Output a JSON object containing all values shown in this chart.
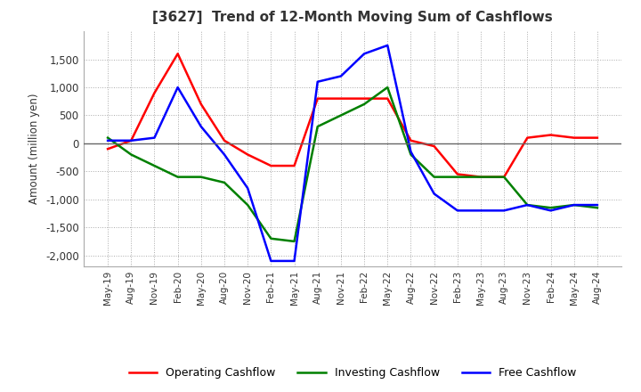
{
  "title": "[3627]  Trend of 12-Month Moving Sum of Cashflows",
  "ylabel": "Amount (million yen)",
  "ylim": [
    -2200,
    2000
  ],
  "yticks": [
    -2000,
    -1500,
    -1000,
    -500,
    0,
    500,
    1000,
    1500
  ],
  "x_labels": [
    "May-19",
    "Aug-19",
    "Nov-19",
    "Feb-20",
    "May-20",
    "Aug-20",
    "Nov-20",
    "Feb-21",
    "May-21",
    "Aug-21",
    "Nov-21",
    "Feb-22",
    "May-22",
    "Aug-22",
    "Nov-22",
    "Feb-23",
    "May-23",
    "Aug-23",
    "Nov-23",
    "Feb-24",
    "May-24",
    "Aug-24"
  ],
  "operating_cashflow": [
    -100,
    50,
    900,
    1600,
    700,
    50,
    -200,
    -400,
    -400,
    800,
    800,
    800,
    800,
    50,
    -50,
    -550,
    -600,
    -600,
    100,
    150,
    100,
    100
  ],
  "investing_cashflow": [
    100,
    -200,
    -400,
    -600,
    -600,
    -700,
    -1100,
    -1700,
    -1750,
    300,
    500,
    700,
    1000,
    -200,
    -600,
    -600,
    -600,
    -600,
    -1100,
    -1150,
    -1100,
    -1150
  ],
  "free_cashflow": [
    50,
    50,
    100,
    1000,
    300,
    -200,
    -800,
    -2100,
    -2100,
    1100,
    1200,
    1600,
    1750,
    -150,
    -900,
    -1200,
    -1200,
    -1200,
    -1100,
    -1200,
    -1100,
    -1100
  ],
  "operating_color": "#ff0000",
  "investing_color": "#008000",
  "free_color": "#0000ff",
  "background_color": "#ffffff",
  "grid_color": "#aaaaaa"
}
